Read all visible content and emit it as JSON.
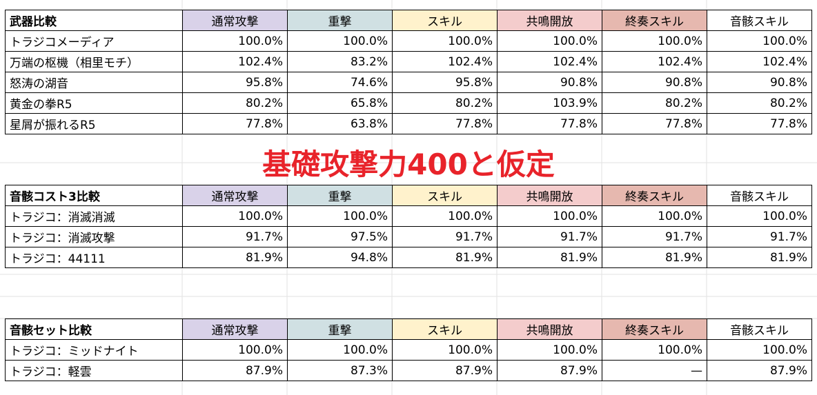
{
  "headers": [
    "通常攻撃",
    "重撃",
    "スキル",
    "共鳴開放",
    "終奏スキル",
    "音骸スキル"
  ],
  "header_colors": [
    "#d9d2e9",
    "#d0e0e3",
    "#fff2cc",
    "#f4cccc",
    "#e6b8af",
    "#ffffff"
  ],
  "banner": "基礎攻撃力400と仮定",
  "sections": [
    {
      "title": "武器比較",
      "rows": [
        {
          "label": "トラジコメーディア",
          "values": [
            "100.0%",
            "100.0%",
            "100.0%",
            "100.0%",
            "100.0%",
            "100.0%"
          ]
        },
        {
          "label": "万端の枢機（相里モチ）",
          "values": [
            "102.4%",
            "83.2%",
            "102.4%",
            "102.4%",
            "102.4%",
            "102.4%"
          ]
        },
        {
          "label": "怒涛の湖音",
          "values": [
            "95.8%",
            "74.6%",
            "95.8%",
            "90.8%",
            "90.8%",
            "90.8%"
          ]
        },
        {
          "label": "黄金の拳R5",
          "values": [
            "80.2%",
            "65.8%",
            "80.2%",
            "103.9%",
            "80.2%",
            "80.2%"
          ]
        },
        {
          "label": "星屑が振れるR5",
          "values": [
            "77.8%",
            "63.8%",
            "77.8%",
            "77.8%",
            "77.8%",
            "77.8%"
          ]
        }
      ]
    },
    {
      "title": "音骸コスト3比較",
      "rows": [
        {
          "label": "トラジコ：消滅消滅",
          "values": [
            "100.0%",
            "100.0%",
            "100.0%",
            "100.0%",
            "100.0%",
            "100.0%"
          ]
        },
        {
          "label": "トラジコ：消滅攻撃",
          "values": [
            "91.7%",
            "97.5%",
            "91.7%",
            "91.7%",
            "91.7%",
            "91.7%"
          ]
        },
        {
          "label": "トラジコ：44111",
          "values": [
            "81.9%",
            "94.8%",
            "81.9%",
            "81.9%",
            "81.9%",
            "81.9%"
          ]
        }
      ]
    },
    {
      "title": "音骸セット比較",
      "rows": [
        {
          "label": "トラジコ：ミッドナイト",
          "values": [
            "100.0%",
            "100.0%",
            "100.0%",
            "100.0%",
            "100.0%",
            "100.0%"
          ]
        },
        {
          "label": "トラジコ：軽雲",
          "values": [
            "87.9%",
            "87.3%",
            "87.9%",
            "87.9%",
            "—",
            "87.9%"
          ]
        }
      ]
    }
  ]
}
